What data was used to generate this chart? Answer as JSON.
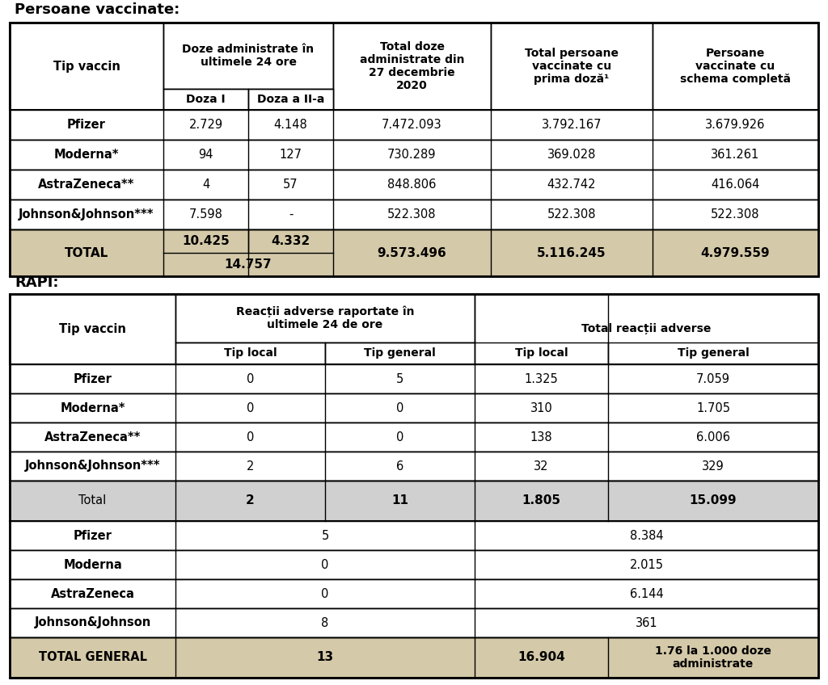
{
  "title1": "Persoane vaccinate:",
  "title2": "RAPI:",
  "bg_color": "#ffffff",
  "tan_color": "#d4c9a8",
  "light_gray": "#d0d0d0",
  "white": "#ffffff",
  "black": "#000000",
  "table1": {
    "rows": [
      [
        "Pfizer",
        "2.729",
        "4.148",
        "7.472.093",
        "3.792.167",
        "3.679.926"
      ],
      [
        "Moderna*",
        "94",
        "127",
        "730.289",
        "369.028",
        "361.261"
      ],
      [
        "AstraZeneca**",
        "4",
        "57",
        "848.806",
        "432.742",
        "416.064"
      ],
      [
        "Johnson&Johnson***",
        "7.598",
        "-",
        "522.308",
        "522.308",
        "522.308"
      ]
    ],
    "total": {
      "label": "TOTAL",
      "d1": "10.425",
      "d2": "4.332",
      "combined": "14.757",
      "col3": "9.573.496",
      "col4": "5.116.245",
      "col5": "4.979.559"
    }
  },
  "table2": {
    "rows1": [
      [
        "Pfizer",
        "0",
        "5",
        "1.325",
        "7.059"
      ],
      [
        "Moderna*",
        "0",
        "0",
        "310",
        "1.705"
      ],
      [
        "AstraZeneca**",
        "0",
        "0",
        "138",
        "6.006"
      ],
      [
        "Johnson&Johnson***",
        "2",
        "6",
        "32",
        "329"
      ]
    ],
    "total1": {
      "label": "Total",
      "tl24": "2",
      "tg24": "11",
      "tl_tot": "1.805",
      "tg_tot": "15.099"
    },
    "rows2": [
      [
        "Pfizer",
        "5",
        "8.384"
      ],
      [
        "Moderna",
        "0",
        "2.015"
      ],
      [
        "AstraZeneca",
        "0",
        "6.144"
      ],
      [
        "Johnson&Johnson",
        "8",
        "361"
      ]
    ],
    "total2": {
      "label": "TOTAL GENERAL",
      "val24": "13",
      "val_tot": "16.904",
      "rate": "1.76 la 1.000 doze\nadministrate"
    }
  }
}
